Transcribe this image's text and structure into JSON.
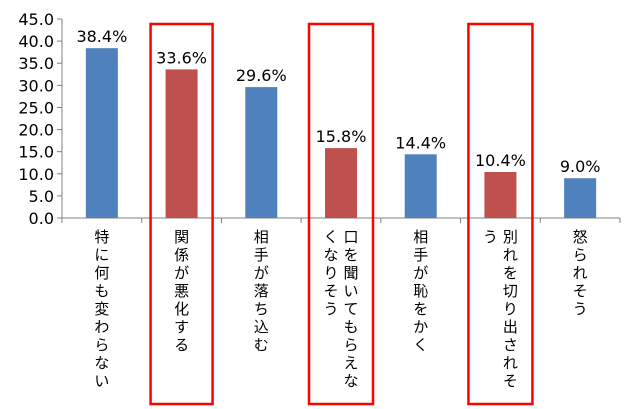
{
  "chart_data": {
    "type": "bar",
    "categories": [
      "特に何も変わらない",
      "関係が悪化する",
      "相手が落ち込む",
      "口を聞いてもらえなくなりそう",
      "相手が恥をかく",
      "別れを切り出されそう",
      "怒られそう"
    ],
    "values": [
      38.4,
      33.6,
      29.6,
      15.8,
      14.4,
      10.4,
      9.0
    ],
    "data_labels": [
      "38.4%",
      "33.6%",
      "29.6%",
      "15.8%",
      "14.4%",
      "10.4%",
      "9.0%"
    ],
    "y_ticks": [
      "0.0",
      "5.0",
      "10.0",
      "15.0",
      "20.0",
      "25.0",
      "30.0",
      "35.0",
      "40.0",
      "45.0"
    ],
    "ylim": [
      0,
      45
    ],
    "title": "",
    "xlabel": "",
    "ylabel": "",
    "grid": false,
    "legend": false,
    "bar_colors": [
      "#4f81bd",
      "#c0504d",
      "#4f81bd",
      "#c0504d",
      "#4f81bd",
      "#c0504d",
      "#4f81bd"
    ],
    "highlighted_categories": [
      "関係が悪化する",
      "口を聞いてもらえなくなりそう",
      "別れを切り出されそう"
    ],
    "highlight_color": "#ff0000"
  }
}
